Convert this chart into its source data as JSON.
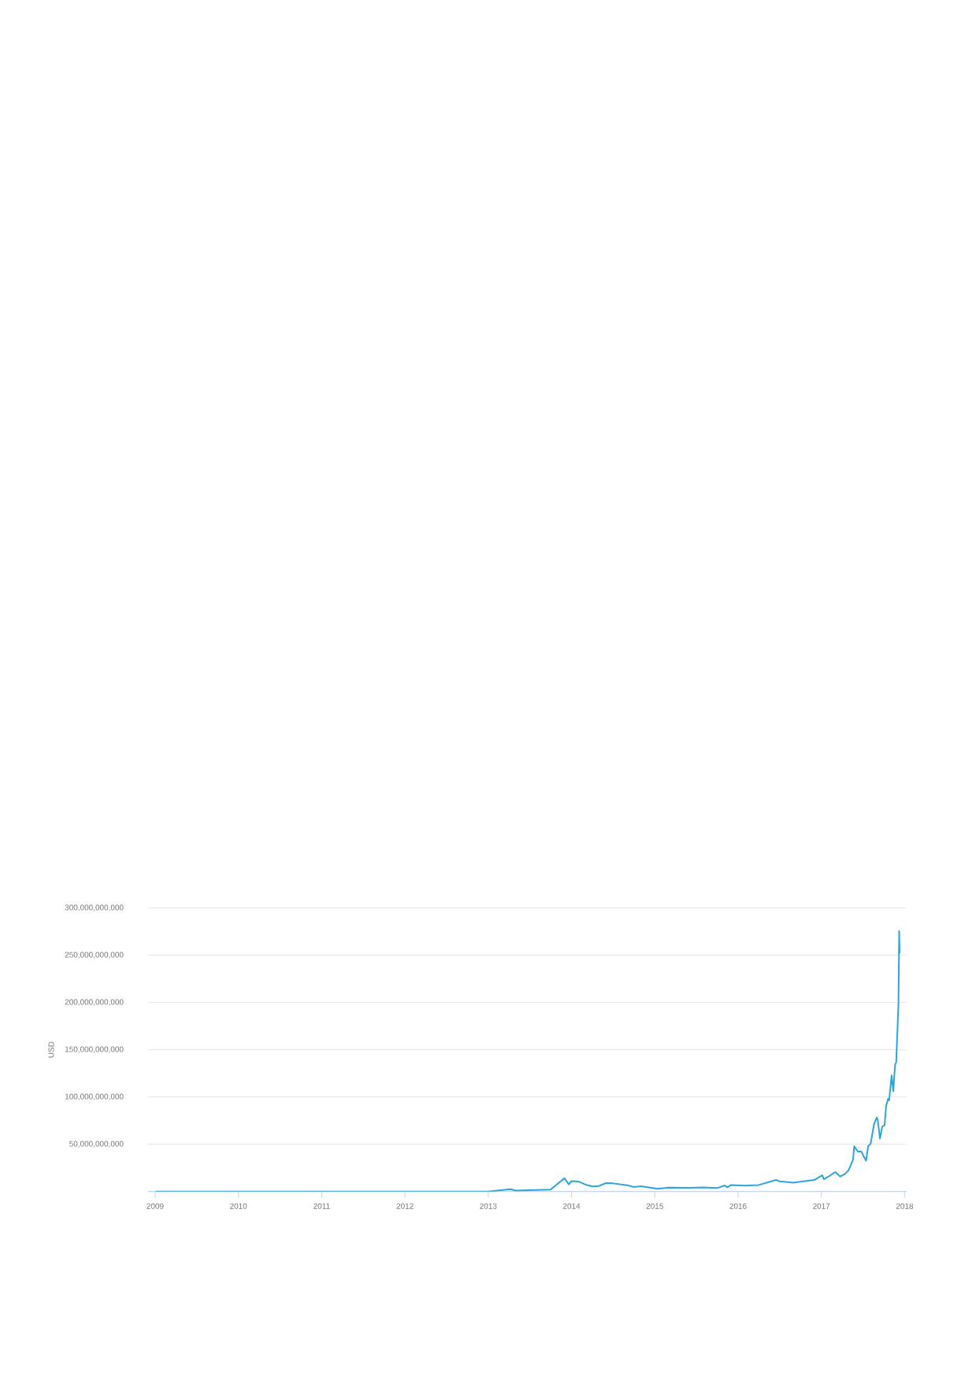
{
  "chart_data": {
    "type": "line",
    "ylabel": "USD",
    "x": [
      "2009-01-03",
      "2010-01-01",
      "2010-07-01",
      "2011-01-01",
      "2011-06-10",
      "2011-09-01",
      "2012-01-01",
      "2012-08-15",
      "2013-01-01",
      "2013-04-09",
      "2013-05-01",
      "2013-10-01",
      "2013-12-01",
      "2013-12-20",
      "2014-01-01",
      "2014-02-01",
      "2014-03-01",
      "2014-04-01",
      "2014-05-01",
      "2014-06-01",
      "2014-07-01",
      "2014-09-01",
      "2014-10-01",
      "2014-11-01",
      "2015-01-14",
      "2015-03-01",
      "2015-06-01",
      "2015-08-01",
      "2015-10-01",
      "2015-11-04",
      "2015-11-15",
      "2015-12-01",
      "2016-02-01",
      "2016-04-01",
      "2016-06-17",
      "2016-07-01",
      "2016-09-01",
      "2016-12-01",
      "2017-01-05",
      "2017-01-12",
      "2017-02-01",
      "2017-03-03",
      "2017-03-25",
      "2017-04-15",
      "2017-05-01",
      "2017-05-20",
      "2017-05-25",
      "2017-06-10",
      "2017-06-25",
      "2017-07-16",
      "2017-07-25",
      "2017-08-05",
      "2017-08-20",
      "2017-09-01",
      "2017-09-05",
      "2017-09-15",
      "2017-09-25",
      "2017-10-05",
      "2017-10-12",
      "2017-10-20",
      "2017-10-25",
      "2017-11-05",
      "2017-11-12",
      "2017-11-20",
      "2017-11-25",
      "2017-12-01",
      "2017-12-05",
      "2017-12-07",
      "2017-12-08",
      "2017-12-10"
    ],
    "series": [
      {
        "color": "#2fa4d9",
        "values": [
          0,
          0,
          0,
          0,
          0,
          0,
          0,
          0,
          0,
          2500000000,
          1000000000,
          2000000000,
          14000000000,
          7500000000,
          11000000000,
          10500000000,
          7500000000,
          5300000000,
          5800000000,
          8900000000,
          8600000000,
          6700000000,
          4700000000,
          5500000000,
          2800000000,
          4200000000,
          3900000000,
          4400000000,
          3600000000,
          6400000000,
          4400000000,
          6900000000,
          6100000000,
          6900000000,
          12200000000,
          10800000000,
          9400000000,
          12200000000,
          17200000000,
          13000000000,
          15800000000,
          20600000000,
          15800000000,
          18600000000,
          22800000000,
          33900000000,
          47800000000,
          42200000000,
          42200000000,
          32500000000,
          47800000000,
          50600000000,
          71400000000,
          78300000000,
          75600000000,
          56100000000,
          68600000000,
          70000000000,
          90800000000,
          97800000000,
          96400000000,
          122800000000,
          106100000000,
          133900000000,
          136700000000,
          174000000000,
          199000000000,
          246000000000,
          275600000000,
          252000000000
        ]
      }
    ],
    "xlim": [
      "2008-12-01",
      "2018-01-10"
    ],
    "xticks": [
      "2009",
      "2010",
      "2011",
      "2012",
      "2013",
      "2014",
      "2015",
      "2016",
      "2017",
      "2018"
    ],
    "ylim": [
      0,
      300000000000
    ],
    "yticks": [
      {
        "value": 50000000000,
        "label": "50,000,000,000"
      },
      {
        "value": 100000000000,
        "label": "100,000,000,000"
      },
      {
        "value": 150000000000,
        "label": "150,000,000,000"
      },
      {
        "value": 200000000000,
        "label": "200,000,000,000"
      },
      {
        "value": 250000000000,
        "label": "250,000,000,000"
      },
      {
        "value": 300000000000,
        "label": "300,000,000,000"
      }
    ],
    "grid": "y",
    "marker": "none",
    "line_style": "solid"
  }
}
